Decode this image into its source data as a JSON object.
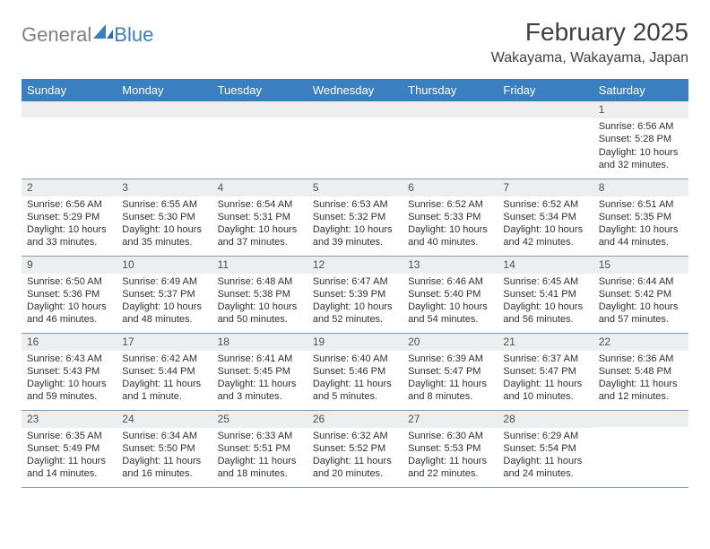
{
  "brand": {
    "part1": "General",
    "part2": "Blue"
  },
  "title": "February 2025",
  "location": "Wakayama, Wakayama, Japan",
  "colors": {
    "header_bg": "#3a7fbf",
    "header_text": "#ffffff",
    "daynum_bg": "#eceeef",
    "grid_line": "#7e9bb8",
    "text": "#303030",
    "brand_gray": "#808080",
    "brand_blue": "#3a7fbf"
  },
  "fonts": {
    "title_size": 28,
    "location_size": 16,
    "dow_size": 13,
    "cell_size": 11,
    "daynum_size": 12
  },
  "dow": [
    "Sunday",
    "Monday",
    "Tuesday",
    "Wednesday",
    "Thursday",
    "Friday",
    "Saturday"
  ],
  "weeks": [
    [
      null,
      null,
      null,
      null,
      null,
      null,
      {
        "n": "1",
        "sr": "Sunrise: 6:56 AM",
        "ss": "Sunset: 5:28 PM",
        "dl": "Daylight: 10 hours and 32 minutes."
      }
    ],
    [
      {
        "n": "2",
        "sr": "Sunrise: 6:56 AM",
        "ss": "Sunset: 5:29 PM",
        "dl": "Daylight: 10 hours and 33 minutes."
      },
      {
        "n": "3",
        "sr": "Sunrise: 6:55 AM",
        "ss": "Sunset: 5:30 PM",
        "dl": "Daylight: 10 hours and 35 minutes."
      },
      {
        "n": "4",
        "sr": "Sunrise: 6:54 AM",
        "ss": "Sunset: 5:31 PM",
        "dl": "Daylight: 10 hours and 37 minutes."
      },
      {
        "n": "5",
        "sr": "Sunrise: 6:53 AM",
        "ss": "Sunset: 5:32 PM",
        "dl": "Daylight: 10 hours and 39 minutes."
      },
      {
        "n": "6",
        "sr": "Sunrise: 6:52 AM",
        "ss": "Sunset: 5:33 PM",
        "dl": "Daylight: 10 hours and 40 minutes."
      },
      {
        "n": "7",
        "sr": "Sunrise: 6:52 AM",
        "ss": "Sunset: 5:34 PM",
        "dl": "Daylight: 10 hours and 42 minutes."
      },
      {
        "n": "8",
        "sr": "Sunrise: 6:51 AM",
        "ss": "Sunset: 5:35 PM",
        "dl": "Daylight: 10 hours and 44 minutes."
      }
    ],
    [
      {
        "n": "9",
        "sr": "Sunrise: 6:50 AM",
        "ss": "Sunset: 5:36 PM",
        "dl": "Daylight: 10 hours and 46 minutes."
      },
      {
        "n": "10",
        "sr": "Sunrise: 6:49 AM",
        "ss": "Sunset: 5:37 PM",
        "dl": "Daylight: 10 hours and 48 minutes."
      },
      {
        "n": "11",
        "sr": "Sunrise: 6:48 AM",
        "ss": "Sunset: 5:38 PM",
        "dl": "Daylight: 10 hours and 50 minutes."
      },
      {
        "n": "12",
        "sr": "Sunrise: 6:47 AM",
        "ss": "Sunset: 5:39 PM",
        "dl": "Daylight: 10 hours and 52 minutes."
      },
      {
        "n": "13",
        "sr": "Sunrise: 6:46 AM",
        "ss": "Sunset: 5:40 PM",
        "dl": "Daylight: 10 hours and 54 minutes."
      },
      {
        "n": "14",
        "sr": "Sunrise: 6:45 AM",
        "ss": "Sunset: 5:41 PM",
        "dl": "Daylight: 10 hours and 56 minutes."
      },
      {
        "n": "15",
        "sr": "Sunrise: 6:44 AM",
        "ss": "Sunset: 5:42 PM",
        "dl": "Daylight: 10 hours and 57 minutes."
      }
    ],
    [
      {
        "n": "16",
        "sr": "Sunrise: 6:43 AM",
        "ss": "Sunset: 5:43 PM",
        "dl": "Daylight: 10 hours and 59 minutes."
      },
      {
        "n": "17",
        "sr": "Sunrise: 6:42 AM",
        "ss": "Sunset: 5:44 PM",
        "dl": "Daylight: 11 hours and 1 minute."
      },
      {
        "n": "18",
        "sr": "Sunrise: 6:41 AM",
        "ss": "Sunset: 5:45 PM",
        "dl": "Daylight: 11 hours and 3 minutes."
      },
      {
        "n": "19",
        "sr": "Sunrise: 6:40 AM",
        "ss": "Sunset: 5:46 PM",
        "dl": "Daylight: 11 hours and 5 minutes."
      },
      {
        "n": "20",
        "sr": "Sunrise: 6:39 AM",
        "ss": "Sunset: 5:47 PM",
        "dl": "Daylight: 11 hours and 8 minutes."
      },
      {
        "n": "21",
        "sr": "Sunrise: 6:37 AM",
        "ss": "Sunset: 5:47 PM",
        "dl": "Daylight: 11 hours and 10 minutes."
      },
      {
        "n": "22",
        "sr": "Sunrise: 6:36 AM",
        "ss": "Sunset: 5:48 PM",
        "dl": "Daylight: 11 hours and 12 minutes."
      }
    ],
    [
      {
        "n": "23",
        "sr": "Sunrise: 6:35 AM",
        "ss": "Sunset: 5:49 PM",
        "dl": "Daylight: 11 hours and 14 minutes."
      },
      {
        "n": "24",
        "sr": "Sunrise: 6:34 AM",
        "ss": "Sunset: 5:50 PM",
        "dl": "Daylight: 11 hours and 16 minutes."
      },
      {
        "n": "25",
        "sr": "Sunrise: 6:33 AM",
        "ss": "Sunset: 5:51 PM",
        "dl": "Daylight: 11 hours and 18 minutes."
      },
      {
        "n": "26",
        "sr": "Sunrise: 6:32 AM",
        "ss": "Sunset: 5:52 PM",
        "dl": "Daylight: 11 hours and 20 minutes."
      },
      {
        "n": "27",
        "sr": "Sunrise: 6:30 AM",
        "ss": "Sunset: 5:53 PM",
        "dl": "Daylight: 11 hours and 22 minutes."
      },
      {
        "n": "28",
        "sr": "Sunrise: 6:29 AM",
        "ss": "Sunset: 5:54 PM",
        "dl": "Daylight: 11 hours and 24 minutes."
      },
      null
    ]
  ]
}
